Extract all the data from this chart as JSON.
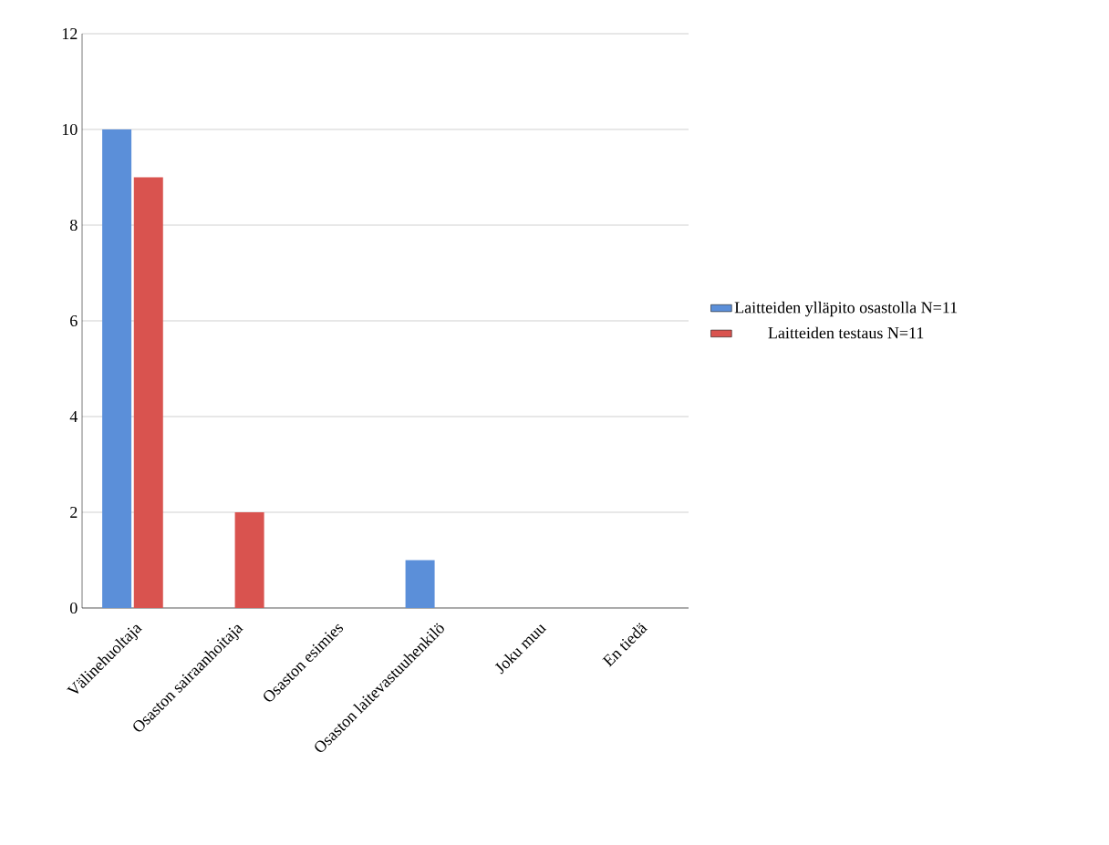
{
  "chart_data": {
    "type": "bar",
    "categories": [
      "Välinehuoltaja",
      "Osaston sairaanhoitaja",
      "Osaston esimies",
      "Osaston laitevastuuhenkilö",
      "Joku muu",
      "En tiedä"
    ],
    "series": [
      {
        "name": "Laitteiden ylläpito osastolla N=11",
        "color": "#5b8fd9",
        "values": [
          10,
          0,
          0,
          1,
          0,
          0
        ]
      },
      {
        "name": "Laitteiden testaus N=11",
        "color": "#d9534f",
        "values": [
          9,
          2,
          0,
          0,
          0,
          0
        ]
      }
    ],
    "ylim": [
      0,
      12
    ],
    "yticks": [
      0,
      2,
      4,
      6,
      8,
      10,
      12
    ],
    "grid": "y",
    "legend": "right"
  }
}
